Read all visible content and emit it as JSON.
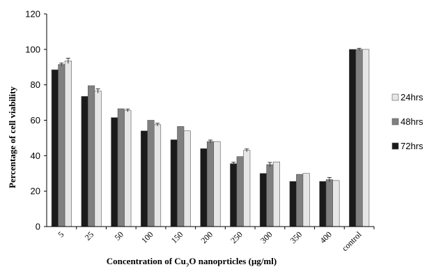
{
  "chart_data": {
    "type": "bar",
    "categories": [
      "5",
      "25",
      "50",
      "100",
      "150",
      "200",
      "250",
      "300",
      "350",
      "400",
      "control"
    ],
    "series": [
      {
        "name": "72hrs",
        "color": "#1a1a1a",
        "values": [
          88.5,
          73.5,
          61.5,
          54,
          49,
          44,
          35.5,
          30,
          25.5,
          25.5,
          100
        ],
        "errors": [
          0,
          0,
          0,
          0,
          0,
          0,
          0.8,
          0,
          0,
          0,
          0
        ]
      },
      {
        "name": "48hrs",
        "color": "#808080",
        "values": [
          91.5,
          79.5,
          66.5,
          60,
          56.5,
          48,
          39.5,
          35,
          29.5,
          26.5,
          100
        ],
        "errors": [
          0.8,
          0,
          0,
          0,
          0,
          0.8,
          0,
          1.2,
          0,
          1.2,
          0.6
        ]
      },
      {
        "name": "24hrs",
        "color": "#e6e6e6",
        "values": [
          93.5,
          76.5,
          65.5,
          57.5,
          54,
          48,
          43,
          36.5,
          30,
          26,
          100
        ],
        "errors": [
          1.5,
          1.2,
          0.8,
          0.8,
          0,
          0,
          0.8,
          0,
          0,
          0,
          0
        ]
      }
    ],
    "legend_order": [
      "24hrs",
      "48hrs",
      "72hrs"
    ],
    "legend_position": "right",
    "xlabel_html": {
      "prefix": "Concentration of Cu",
      "sub": "2",
      "suffix": "O nanopr​ticles (μg/ml)"
    },
    "ylabel": "Percentage of cell viability",
    "ylim": [
      0,
      120
    ],
    "yticks": [
      0,
      20,
      40,
      60,
      80,
      100,
      120
    ],
    "grid": false
  }
}
